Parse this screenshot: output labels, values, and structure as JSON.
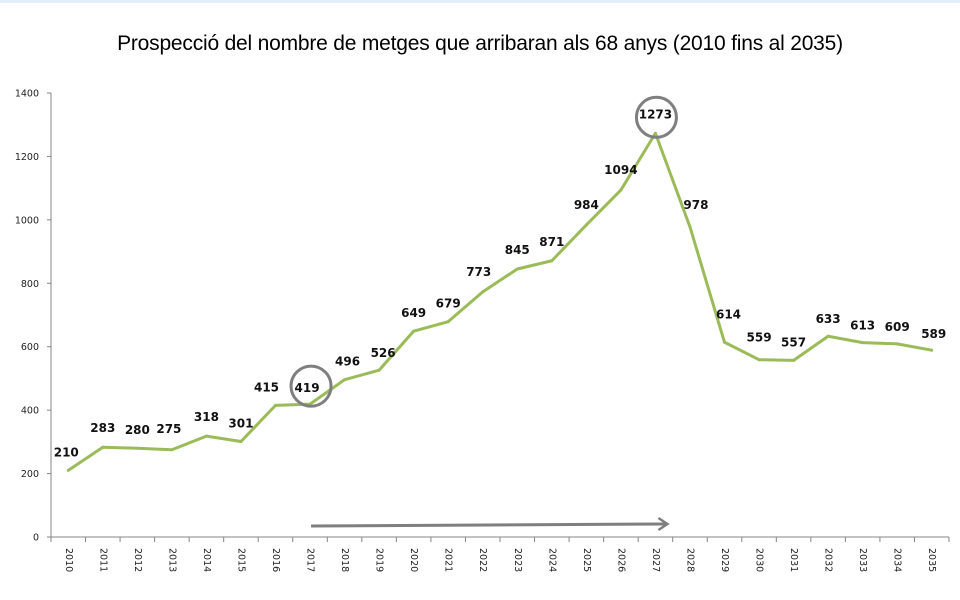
{
  "chart_data": {
    "type": "line",
    "title": "Prospecció del nombre de metges que arribaran als 68 anys (2010 fins al 2035)",
    "xlabel": "",
    "ylabel": "",
    "categories": [
      "2010",
      "2011",
      "2012",
      "2013",
      "2014",
      "2015",
      "2016",
      "2017",
      "2018",
      "2019",
      "2020",
      "2021",
      "2022",
      "2023",
      "2024",
      "2025",
      "2026",
      "2027",
      "2028",
      "2029",
      "2030",
      "2031",
      "2032",
      "2033",
      "2034",
      "2035"
    ],
    "series": [
      {
        "name": "Metges que arribaran als 68 anys",
        "color": "#9bbb59",
        "values": [
          210,
          283,
          280,
          275,
          318,
          301,
          415,
          419,
          496,
          526,
          649,
          679,
          773,
          845,
          871,
          984,
          1094,
          1273,
          978,
          614,
          559,
          557,
          633,
          613,
          609,
          589
        ]
      }
    ],
    "ylim": [
      0,
      1400
    ],
    "yticks": [
      0,
      200,
      400,
      600,
      800,
      1000,
      1200,
      1400
    ],
    "grid": false,
    "legend": "none",
    "data_labels": true,
    "annotations": [
      {
        "type": "circle",
        "category": "2017",
        "value": 419,
        "color": "#7f7f7f"
      },
      {
        "type": "circle",
        "category": "2027",
        "value": 1273,
        "color": "#7f7f7f"
      },
      {
        "type": "arrow",
        "from_category": "2017",
        "to_category": "2027",
        "color": "#7f7f7f"
      }
    ]
  }
}
